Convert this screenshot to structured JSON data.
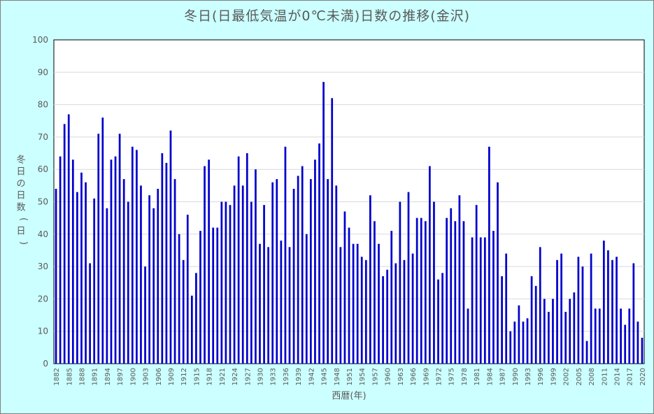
{
  "chart_data": {
    "type": "bar",
    "title": "冬日(日最低気温が0℃未満)日数の推移(金沢)",
    "xlabel": "西暦(年)",
    "ylabel": "冬日の日数(日)",
    "ylim": [
      0,
      100
    ],
    "yticks": [
      0,
      10,
      20,
      30,
      40,
      50,
      60,
      70,
      80,
      90,
      100
    ],
    "grid": true,
    "x_start": 1882,
    "x_end": 2020,
    "xtick_years": [
      1882,
      1885,
      1888,
      1891,
      1894,
      1897,
      1900,
      1903,
      1906,
      1909,
      1912,
      1915,
      1918,
      1921,
      1924,
      1927,
      1930,
      1933,
      1936,
      1939,
      1942,
      1945,
      1948,
      1951,
      1954,
      1957,
      1960,
      1963,
      1966,
      1969,
      1972,
      1975,
      1978,
      1981,
      1984,
      1987,
      1990,
      1993,
      1996,
      1999,
      2002,
      2005,
      2008,
      2011,
      2014,
      2017,
      2020
    ],
    "bar_color": "#0000cc",
    "values": [
      54,
      64,
      74,
      77,
      63,
      53,
      59,
      56,
      31,
      51,
      71,
      76,
      48,
      63,
      64,
      71,
      57,
      50,
      67,
      66,
      55,
      30,
      52,
      48,
      54,
      65,
      62,
      72,
      57,
      40,
      32,
      46,
      21,
      28,
      41,
      61,
      63,
      42,
      42,
      50,
      50,
      49,
      55,
      64,
      55,
      65,
      50,
      60,
      37,
      49,
      36,
      56,
      57,
      38,
      67,
      36,
      54,
      58,
      61,
      40,
      57,
      63,
      68,
      87,
      57,
      82,
      55,
      36,
      47,
      42,
      37,
      37,
      33,
      32,
      52,
      44,
      37,
      27,
      29,
      41,
      31,
      50,
      32,
      53,
      34,
      45,
      45,
      44,
      61,
      50,
      26,
      28,
      45,
      48,
      44,
      52,
      44,
      17,
      39,
      49,
      39,
      39,
      67,
      41,
      56,
      27,
      34,
      10,
      13,
      18,
      13,
      14,
      27,
      24,
      36,
      20,
      16,
      20,
      32,
      34,
      16,
      20,
      22,
      33,
      30,
      7,
      34,
      17,
      17,
      38,
      35,
      32,
      33,
      17,
      12,
      17,
      31,
      13,
      8
    ]
  }
}
